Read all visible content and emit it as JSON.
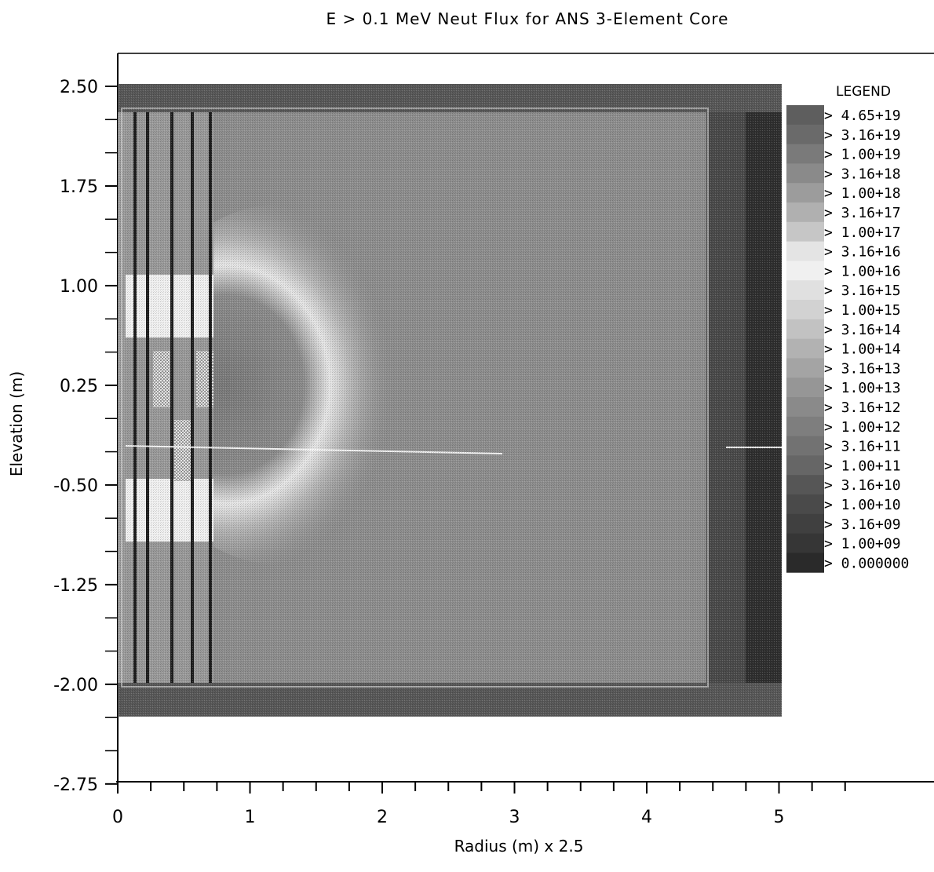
{
  "chart_data": {
    "type": "heatmap",
    "title": "E > 0.1 MeV Neut Flux for ANS 3-Element Core",
    "xlabel": "Radius (m) x 2.5",
    "ylabel": "Elevation (m)",
    "xlim": [
      0,
      6
    ],
    "ylim": [
      -2.75,
      2.75
    ],
    "x_ticks": [
      "0",
      "1",
      "2",
      "3",
      "4",
      "5"
    ],
    "y_ticks": [
      "2.50",
      "1.75",
      "1.00",
      "0.25",
      "-0.50",
      "-1.25",
      "-2.00",
      "-2.75"
    ],
    "legend": {
      "title": "LEGEND",
      "placement": "right",
      "entries": [
        {
          "label": "> 4.65+19",
          "color": "#5e5e5e"
        },
        {
          "label": "> 3.16+19",
          "color": "#6a6a6a"
        },
        {
          "label": "> 1.00+19",
          "color": "#7a7a7a"
        },
        {
          "label": "> 3.16+18",
          "color": "#8a8a8a"
        },
        {
          "label": "> 1.00+18",
          "color": "#9c9c9c"
        },
        {
          "label": "> 3.16+17",
          "color": "#b0b0b0"
        },
        {
          "label": "> 1.00+17",
          "color": "#c6c6c6"
        },
        {
          "label": "> 3.16+16",
          "color": "#e4e4e4"
        },
        {
          "label": "> 1.00+16",
          "color": "#f0f0f0"
        },
        {
          "label": "> 3.16+15",
          "color": "#e0e0e0"
        },
        {
          "label": "> 1.00+15",
          "color": "#d2d2d2"
        },
        {
          "label": "> 3.16+14",
          "color": "#c2c2c2"
        },
        {
          "label": "> 1.00+14",
          "color": "#b2b2b2"
        },
        {
          "label": "> 3.16+13",
          "color": "#a4a4a4"
        },
        {
          "label": "> 1.00+13",
          "color": "#969696"
        },
        {
          "label": "> 3.16+12",
          "color": "#8a8a8a"
        },
        {
          "label": "> 1.00+12",
          "color": "#7e7e7e"
        },
        {
          "label": "> 3.16+11",
          "color": "#727272"
        },
        {
          "label": "> 1.00+11",
          "color": "#666666"
        },
        {
          "label": "> 3.16+10",
          "color": "#565656"
        },
        {
          "label": "> 1.00+10",
          "color": "#4a4a4a"
        },
        {
          "label": "> 3.16+09",
          "color": "#404040"
        },
        {
          "label": "> 1.00+09",
          "color": "#363636"
        },
        {
          "label": "> 0.000000",
          "color": "#2a2a2a"
        }
      ]
    },
    "grid": false
  }
}
